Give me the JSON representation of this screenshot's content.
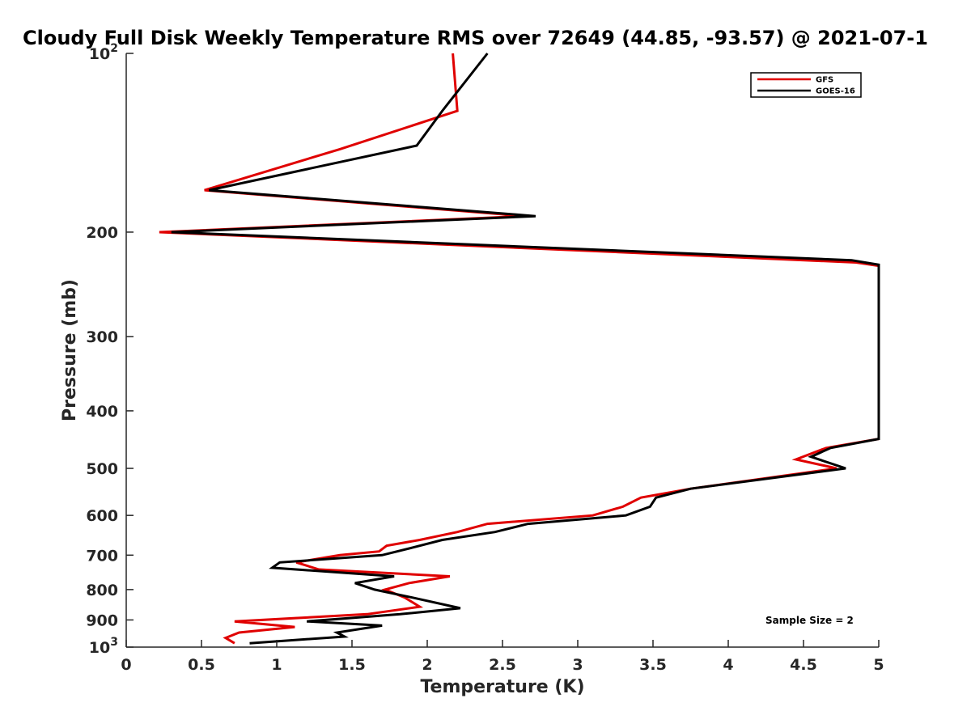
{
  "chart_data": {
    "type": "line",
    "title": "Cloudy Full Disk Weekly Temperature RMS over 72649 (44.85, -93.57) @ 2021-07-1",
    "xlabel": "Temperature (K)",
    "ylabel": "Pressure (mb)",
    "xlim": [
      0,
      5
    ],
    "ylim": [
      100,
      1000
    ],
    "y_scale": "log",
    "y_reversed": true,
    "grid": false,
    "legend_position": "top-right",
    "x_ticks": [
      "0",
      "0.5",
      "1",
      "1.5",
      "2",
      "2.5",
      "3",
      "3.5",
      "4",
      "4.5",
      "5"
    ],
    "y_ticks": [
      {
        "value": 100,
        "base": "10",
        "exp": "2"
      },
      {
        "value": 200,
        "label": "200"
      },
      {
        "value": 300,
        "label": "300"
      },
      {
        "value": 400,
        "label": "400"
      },
      {
        "value": 500,
        "label": "500"
      },
      {
        "value": 600,
        "label": "600"
      },
      {
        "value": 700,
        "label": "700"
      },
      {
        "value": 800,
        "label": "800"
      },
      {
        "value": 900,
        "label": "900"
      },
      {
        "value": 1000,
        "base": "10",
        "exp": "3"
      }
    ],
    "annotation": "Sample Size = 2",
    "series": [
      {
        "name": "GFS",
        "color": "#e00000",
        "points": [
          {
            "x": 2.17,
            "y": 100
          },
          {
            "x": 2.2,
            "y": 125
          },
          {
            "x": 1.42,
            "y": 145
          },
          {
            "x": 0.52,
            "y": 170
          },
          {
            "x": 2.65,
            "y": 188
          },
          {
            "x": 0.22,
            "y": 200
          },
          {
            "x": 4.85,
            "y": 225
          },
          {
            "x": 5.0,
            "y": 228
          },
          {
            "x": 5.0,
            "y": 446
          },
          {
            "x": 4.65,
            "y": 462
          },
          {
            "x": 4.45,
            "y": 483
          },
          {
            "x": 4.72,
            "y": 500
          },
          {
            "x": 3.75,
            "y": 541
          },
          {
            "x": 3.42,
            "y": 560
          },
          {
            "x": 3.3,
            "y": 580
          },
          {
            "x": 3.1,
            "y": 600
          },
          {
            "x": 2.4,
            "y": 620
          },
          {
            "x": 2.2,
            "y": 640
          },
          {
            "x": 1.95,
            "y": 660
          },
          {
            "x": 1.73,
            "y": 675
          },
          {
            "x": 1.68,
            "y": 690
          },
          {
            "x": 1.42,
            "y": 700
          },
          {
            "x": 1.13,
            "y": 720
          },
          {
            "x": 1.28,
            "y": 740
          },
          {
            "x": 2.15,
            "y": 760
          },
          {
            "x": 1.88,
            "y": 780
          },
          {
            "x": 1.72,
            "y": 800
          },
          {
            "x": 1.85,
            "y": 825
          },
          {
            "x": 1.95,
            "y": 855
          },
          {
            "x": 1.6,
            "y": 880
          },
          {
            "x": 0.72,
            "y": 905
          },
          {
            "x": 1.12,
            "y": 925
          },
          {
            "x": 0.75,
            "y": 945
          },
          {
            "x": 0.66,
            "y": 965
          },
          {
            "x": 0.72,
            "y": 985
          }
        ]
      },
      {
        "name": "GOES-16",
        "color": "#000000",
        "points": [
          {
            "x": 2.4,
            "y": 100
          },
          {
            "x": 2.1,
            "y": 125
          },
          {
            "x": 1.93,
            "y": 143
          },
          {
            "x": 0.55,
            "y": 170
          },
          {
            "x": 2.72,
            "y": 188
          },
          {
            "x": 0.3,
            "y": 200
          },
          {
            "x": 4.82,
            "y": 223
          },
          {
            "x": 5.0,
            "y": 227
          },
          {
            "x": 5.0,
            "y": 446
          },
          {
            "x": 4.68,
            "y": 462
          },
          {
            "x": 4.55,
            "y": 478
          },
          {
            "x": 4.78,
            "y": 500
          },
          {
            "x": 3.75,
            "y": 541
          },
          {
            "x": 3.52,
            "y": 560
          },
          {
            "x": 3.48,
            "y": 580
          },
          {
            "x": 3.32,
            "y": 600
          },
          {
            "x": 2.67,
            "y": 620
          },
          {
            "x": 2.45,
            "y": 640
          },
          {
            "x": 2.1,
            "y": 660
          },
          {
            "x": 1.9,
            "y": 680
          },
          {
            "x": 1.7,
            "y": 700
          },
          {
            "x": 1.02,
            "y": 720
          },
          {
            "x": 0.97,
            "y": 735
          },
          {
            "x": 1.78,
            "y": 760
          },
          {
            "x": 1.52,
            "y": 780
          },
          {
            "x": 1.65,
            "y": 800
          },
          {
            "x": 1.9,
            "y": 825
          },
          {
            "x": 2.22,
            "y": 860
          },
          {
            "x": 1.82,
            "y": 880
          },
          {
            "x": 1.2,
            "y": 905
          },
          {
            "x": 1.7,
            "y": 920
          },
          {
            "x": 1.4,
            "y": 945
          },
          {
            "x": 1.45,
            "y": 960
          },
          {
            "x": 0.82,
            "y": 985
          }
        ]
      }
    ]
  }
}
